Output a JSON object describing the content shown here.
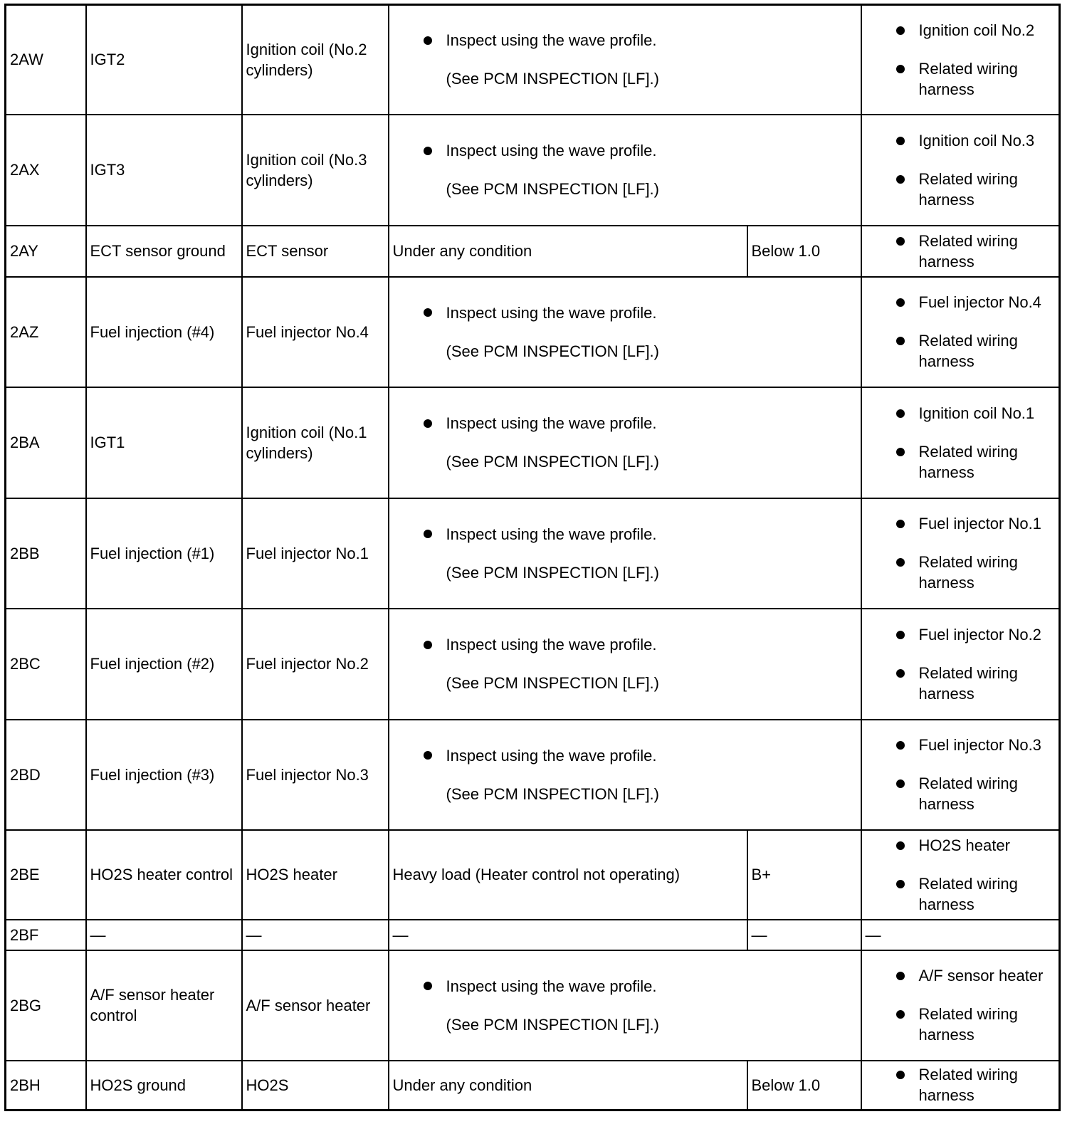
{
  "rows": [
    {
      "terminal": "2AW",
      "signal": "IGT2",
      "connected": "Ignition coil (No.2 cylinders)",
      "wave": true,
      "inspection": "Inspect using the wave profile.",
      "see": "(See PCM INSPECTION [LF].)",
      "checks": [
        "Ignition coil No.2",
        "Related wiring harness"
      ]
    },
    {
      "terminal": "2AX",
      "signal": "IGT3",
      "connected": "Ignition coil (No.3 cylinders)",
      "wave": true,
      "inspection": "Inspect using the wave profile.",
      "see": "(See PCM INSPECTION [LF].)",
      "checks": [
        "Ignition coil No.3",
        "Related wiring harness"
      ]
    },
    {
      "terminal": "2AY",
      "signal": "ECT sensor ground",
      "connected": "ECT sensor",
      "wave": false,
      "condition": "Under any condition",
      "voltage": "Below 1.0",
      "checks": [
        "Related wiring harness"
      ]
    },
    {
      "terminal": "2AZ",
      "signal": "Fuel injection (#4)",
      "connected": "Fuel injector No.4",
      "wave": true,
      "inspection": "Inspect using the wave profile.",
      "see": "(See PCM INSPECTION [LF].)",
      "checks": [
        "Fuel injector No.4",
        "Related wiring harness"
      ]
    },
    {
      "terminal": "2BA",
      "signal": "IGT1",
      "connected": "Ignition coil (No.1 cylinders)",
      "wave": true,
      "inspection": "Inspect using the wave profile.",
      "see": "(See PCM INSPECTION [LF].)",
      "checks": [
        "Ignition coil No.1",
        "Related wiring harness"
      ]
    },
    {
      "terminal": "2BB",
      "signal": "Fuel injection (#1)",
      "connected": "Fuel injector No.1",
      "wave": true,
      "inspection": "Inspect using the wave profile.",
      "see": "(See PCM INSPECTION [LF].)",
      "checks": [
        "Fuel injector No.1",
        "Related wiring harness"
      ]
    },
    {
      "terminal": "2BC",
      "signal": "Fuel injection (#2)",
      "connected": "Fuel injector No.2",
      "wave": true,
      "inspection": "Inspect using the wave profile.",
      "see": "(See PCM INSPECTION [LF].)",
      "checks": [
        "Fuel injector No.2",
        "Related wiring harness"
      ]
    },
    {
      "terminal": "2BD",
      "signal": "Fuel injection (#3)",
      "connected": "Fuel injector No.3",
      "wave": true,
      "inspection": "Inspect using the wave profile.",
      "see": "(See PCM INSPECTION [LF].)",
      "checks": [
        "Fuel injector No.3",
        "Related wiring harness"
      ]
    },
    {
      "terminal": "2BE",
      "signal": "HO2S heater control",
      "connected": "HO2S heater",
      "wave": false,
      "condition": "Heavy load (Heater control not operating)",
      "voltage": "B+",
      "checks": [
        "HO2S heater",
        "Related wiring harness"
      ]
    },
    {
      "terminal": "2BF",
      "signal": "—",
      "connected": "—",
      "wave": false,
      "condition": "—",
      "voltage": "—",
      "checks_text": "—"
    },
    {
      "terminal": "2BG",
      "signal": "A/F sensor heater control",
      "connected": "A/F sensor heater",
      "wave": true,
      "inspection": "Inspect using the wave profile.",
      "see": "(See PCM INSPECTION [LF].)",
      "checks": [
        "A/F sensor heater",
        "Related wiring harness"
      ]
    },
    {
      "terminal": "2BH",
      "signal": "HO2S ground",
      "connected": "HO2S",
      "wave": false,
      "condition": "Under any condition",
      "voltage": "Below 1.0",
      "checks": [
        "Related wiring harness"
      ]
    }
  ]
}
